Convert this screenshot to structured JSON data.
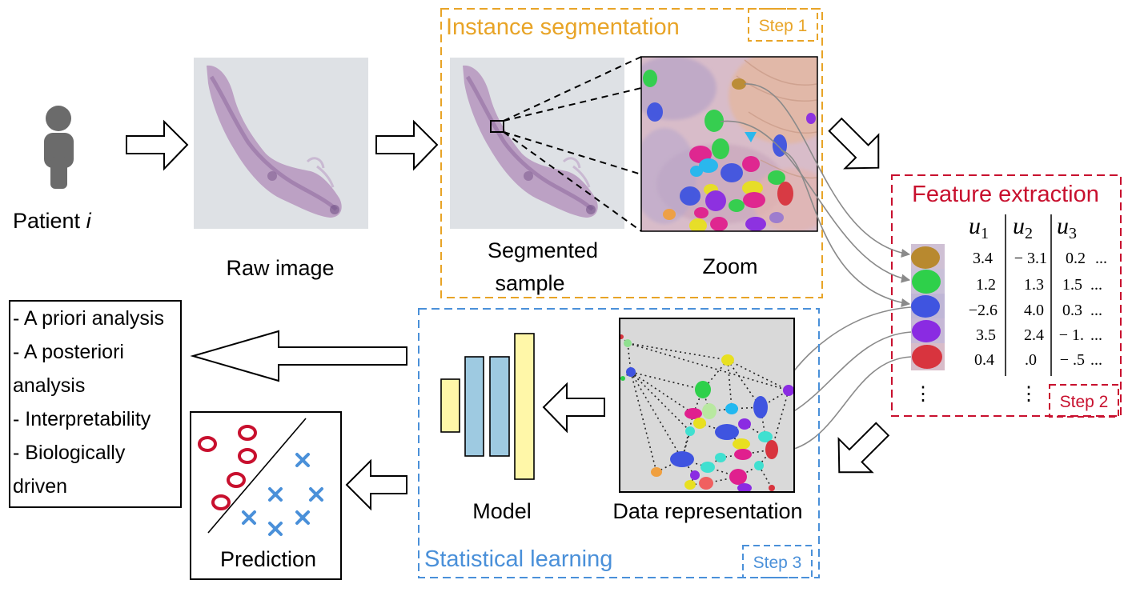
{
  "patient": {
    "label_prefix": "Patient ",
    "label_var": "i"
  },
  "raw_image": {
    "label": "Raw image"
  },
  "step1": {
    "title": "Instance segmentation",
    "badge": "Step 1",
    "segmented_label_line1": "Segmented",
    "segmented_label_line2": "sample",
    "zoom_label": "Zoom"
  },
  "step2": {
    "title": "Feature extraction",
    "badge": "Step 2",
    "columns": [
      {
        "base": "u",
        "sub": "1"
      },
      {
        "base": "u",
        "sub": "2"
      },
      {
        "base": "u",
        "sub": "3"
      }
    ],
    "rows": [
      [
        "3.4",
        "− 3.1",
        "0.2",
        "..."
      ],
      [
        "1.2",
        "1.3",
        "1.5",
        "..."
      ],
      [
        "−2.6",
        "4.0",
        "0.3",
        "..."
      ],
      [
        "3.5",
        "2.4",
        "− 1.",
        "..."
      ],
      [
        "0.4",
        ".0",
        "− .5",
        "..."
      ]
    ],
    "ellipsis": "⋮"
  },
  "step3": {
    "title": "Statistical learning",
    "badge": "Step 3",
    "model_label": "Model",
    "data_repr_label": "Data representation"
  },
  "prediction": {
    "label": "Prediction"
  },
  "outputs": {
    "lines": [
      "- A priori analysis",
      "- A posteriori",
      "analysis",
      "- Interpretability",
      "- Biologically",
      "driven"
    ]
  },
  "colors": {
    "step1": "#E8A427",
    "step2": "#C8102E",
    "step3": "#4A90D9",
    "patient_icon": "#6B6B6B",
    "model_yellow": "#FFF7A8",
    "model_blue": "#9ECAE1",
    "pred_o": "#C8102E",
    "pred_x": "#4A90D9"
  }
}
